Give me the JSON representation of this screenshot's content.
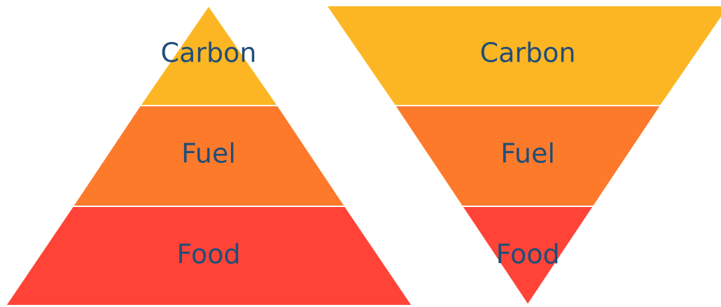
{
  "pyramid": {
    "tiers": [
      {
        "label": "Carbon",
        "color": "#fdb623"
      },
      {
        "label": "Fuel",
        "color": "#fe7a2b"
      },
      {
        "label": "Food",
        "color": "#ff4437"
      }
    ]
  },
  "inverted_pyramid": {
    "tiers": [
      {
        "label": "Carbon",
        "color": "#fdb623"
      },
      {
        "label": "Fuel",
        "color": "#fe7a2b"
      },
      {
        "label": "Food",
        "color": "#ff4437"
      }
    ]
  }
}
